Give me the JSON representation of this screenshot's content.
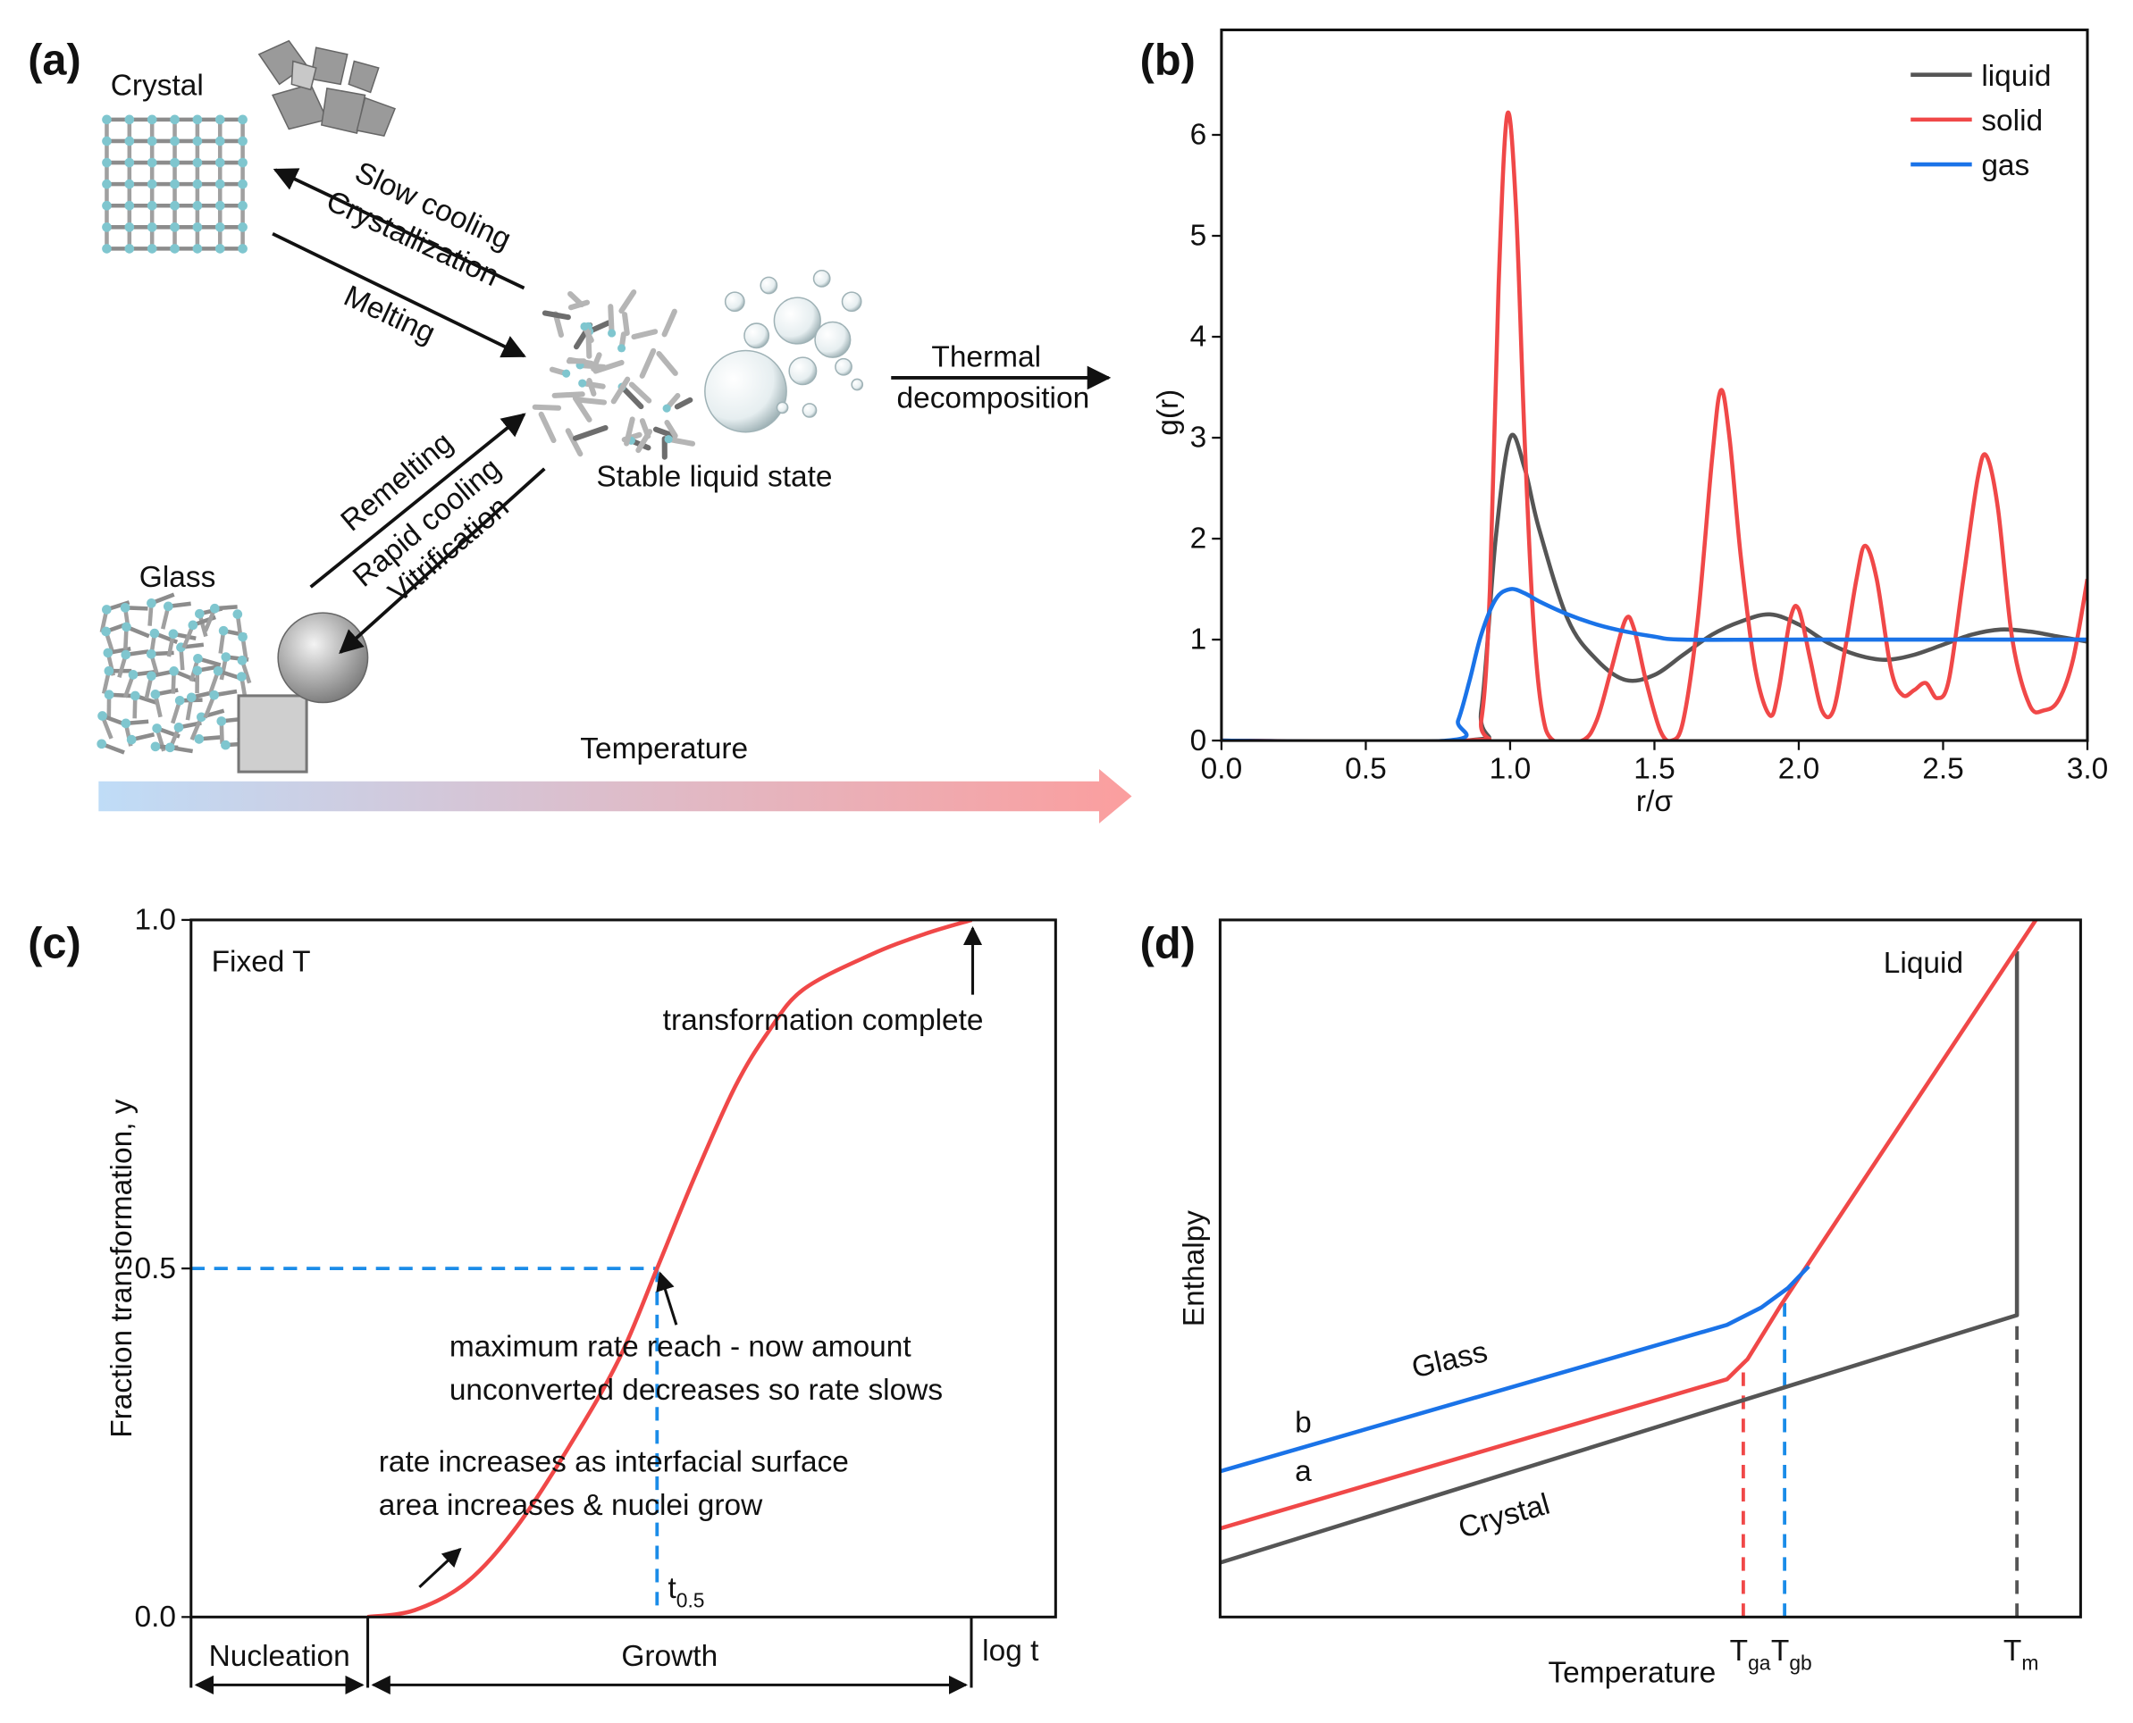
{
  "panel_labels": [
    "(a)",
    "(b)",
    "(c)",
    "(d)"
  ],
  "diagram": {
    "crystal": "Crystal",
    "slow_cooling": "Slow cooling",
    "crystallization": "Crystallization",
    "melting": "Melting",
    "thermal": [
      "Thermal",
      "decomposition"
    ],
    "liquid": "Stable liquid state",
    "remelting": "Remelting",
    "rapid_cooling": "Rapid cooling",
    "vitrification": "Vitrification",
    "glass": "Glass",
    "temperature": "Temperature"
  },
  "chart_data": [
    {
      "type": "line",
      "xlabel": "r/σ",
      "ylabel": "g(r)",
      "xlim": [
        0,
        3
      ],
      "ylim": [
        0,
        7.04
      ],
      "xticks": [
        {
          "value": 0,
          "label": "0.0"
        },
        0.5,
        {
          "value": 1,
          "label": "1.0"
        },
        1.5,
        {
          "value": 2,
          "label": "2.0"
        },
        2.5,
        {
          "value": 3,
          "label": "3.0"
        }
      ],
      "yticks": [
        0,
        1,
        2,
        3,
        4,
        5,
        6
      ],
      "legend": "upper right",
      "series": [
        {
          "name": "liquid",
          "color": "#555555",
          "x": [
            0,
            0.85,
            0.9,
            0.95,
            1.0,
            1.05,
            1.1,
            1.2,
            1.3,
            1.4,
            1.5,
            1.6,
            1.7,
            1.8,
            1.9,
            2.0,
            2.1,
            2.2,
            2.3,
            2.4,
            2.5,
            2.6,
            2.7,
            2.8,
            2.9,
            3.0
          ],
          "values": [
            0,
            0,
            0.3,
            2.0,
            3.0,
            2.7,
            2.1,
            1.2,
            0.8,
            0.6,
            0.65,
            0.85,
            1.05,
            1.18,
            1.25,
            1.15,
            0.97,
            0.85,
            0.8,
            0.85,
            0.95,
            1.05,
            1.1,
            1.08,
            1.03,
            0.98
          ]
        },
        {
          "name": "solid",
          "color": "#f04848",
          "x": [
            0,
            0.85,
            0.9,
            0.93,
            0.96,
            0.99,
            1.02,
            1.05,
            1.08,
            1.11,
            1.15,
            1.25,
            1.3,
            1.35,
            1.4,
            1.43,
            1.47,
            1.52,
            1.56,
            1.6,
            1.65,
            1.7,
            1.73,
            1.76,
            1.8,
            1.85,
            1.9,
            1.93,
            1.97,
            2.0,
            2.04,
            2.08,
            2.12,
            2.16,
            2.2,
            2.23,
            2.27,
            2.32,
            2.36,
            2.4,
            2.44,
            2.48,
            2.52,
            2.57,
            2.62,
            2.65,
            2.69,
            2.74,
            2.8,
            2.85,
            2.9,
            2.95,
            3.0
          ],
          "values": [
            0,
            0,
            0.2,
            1.5,
            4.5,
            6.2,
            5.3,
            3.0,
            1.2,
            0.3,
            0,
            0,
            0.2,
            0.7,
            1.2,
            1.1,
            0.6,
            0.1,
            0,
            0.2,
            1.2,
            2.8,
            3.47,
            3.0,
            1.8,
            0.7,
            0.25,
            0.5,
            1.2,
            1.3,
            0.8,
            0.3,
            0.3,
            0.9,
            1.6,
            1.93,
            1.6,
            0.7,
            0.45,
            0.5,
            0.57,
            0.42,
            0.6,
            1.6,
            2.6,
            2.82,
            2.3,
            1.0,
            0.35,
            0.3,
            0.4,
            0.8,
            1.6
          ]
        },
        {
          "name": "gas",
          "color": "#1a73e8",
          "x": [
            0,
            0.78,
            0.82,
            0.86,
            0.9,
            0.95,
            1.0,
            1.05,
            1.1,
            1.2,
            1.3,
            1.4,
            1.5,
            1.6,
            2.0,
            3.0
          ],
          "values": [
            0,
            0,
            0.2,
            0.6,
            1.05,
            1.4,
            1.5,
            1.46,
            1.38,
            1.25,
            1.15,
            1.08,
            1.03,
            1.0,
            1.0,
            1.0
          ]
        }
      ]
    },
    {
      "type": "line",
      "xlabel": "log t",
      "ylabel": "Fraction transformation, y",
      "xlim": [
        0,
        1
      ],
      "ylim": [
        0,
        1
      ],
      "yticks": [
        {
          "value": 0,
          "label": "0.0"
        },
        0.5,
        {
          "value": 1,
          "label": "1.0"
        }
      ],
      "series": [
        {
          "color": "#f04848",
          "x": [
            0.204,
            0.259,
            0.319,
            0.377,
            0.44,
            0.495,
            0.539,
            0.582,
            0.629,
            0.668,
            0.708,
            0.786,
            0.849,
            0.903
          ],
          "values": [
            0,
            0.01,
            0.05,
            0.13,
            0.25,
            0.37,
            0.5,
            0.63,
            0.76,
            0.84,
            0.9,
            0.95,
            0.98,
            1.0
          ]
        }
      ],
      "reference": {
        "x": 0.539,
        "y": 0.5,
        "color": "#1a8ce8",
        "label": {
          "base": "t",
          "sub": "0.5"
        }
      },
      "annotations": [
        [
          "Fixed T"
        ],
        [
          "transformation complete"
        ],
        [
          "maximum rate reach - now amount",
          "unconverted decreases so rate slows"
        ],
        [
          "rate increases as interfacial surface",
          "area increases & nuclei grow"
        ]
      ],
      "stages": [
        "Nucleation",
        "Growth"
      ]
    },
    {
      "type": "line",
      "xlabel": "Temperature",
      "ylabel": "Enthalpy",
      "xlim": [
        0,
        100
      ],
      "ylim": [
        0,
        100
      ],
      "series": [
        {
          "name": "Crystal",
          "color": "#555555",
          "x": [
            0,
            92.6,
            92.6
          ],
          "values": [
            7.8,
            43.3,
            95.5
          ]
        },
        {
          "name": "a",
          "color": "#f04848",
          "x": [
            0,
            58.9,
            61.3,
            65.2,
            94.8
          ],
          "values": [
            12.7,
            34.1,
            37.0,
            44.8,
            100
          ]
        },
        {
          "name": "b",
          "color": "#1a73e8",
          "x": [
            0,
            58.9,
            62.9,
            66.0,
            68.4
          ],
          "values": [
            20.9,
            41.9,
            44.4,
            47.2,
            50.3
          ]
        }
      ],
      "markers": [
        {
          "x": 60.8,
          "y": 36.4,
          "color": "#f04848",
          "label": {
            "base": "T",
            "sub": "ga"
          }
        },
        {
          "x": 65.6,
          "y": 46,
          "color": "#1a8ce8",
          "label": {
            "base": "T",
            "sub": "gb"
          }
        },
        {
          "x": 92.6,
          "y": 43.3,
          "color": "#555555",
          "label": {
            "base": "T",
            "sub": "m"
          }
        }
      ],
      "annotations": [
        "Liquid",
        "Glass"
      ]
    }
  ]
}
